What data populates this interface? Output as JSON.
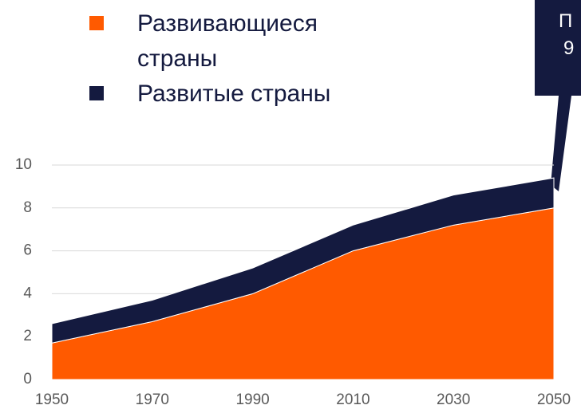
{
  "chart_data": {
    "type": "stacked-area",
    "x": [
      1950,
      1970,
      1990,
      2010,
      2030,
      2050
    ],
    "series": [
      {
        "name": "Развивающиеся страны",
        "color": "#ff5a00",
        "values": [
          1.7,
          2.7,
          4.0,
          6.0,
          7.2,
          8.0
        ]
      },
      {
        "name": "Развитые страны",
        "color": "#141a3f",
        "values": [
          0.9,
          1.0,
          1.2,
          1.2,
          1.4,
          1.4
        ]
      }
    ],
    "xlim": [
      1950,
      2050
    ],
    "xticks": [
      1950,
      1970,
      1990,
      2010,
      2030,
      2050
    ],
    "ylim": [
      0,
      10
    ],
    "yticks": [
      0,
      2,
      4,
      6,
      8,
      10
    ],
    "grid": true,
    "annotation": [
      "П",
      "9"
    ]
  }
}
